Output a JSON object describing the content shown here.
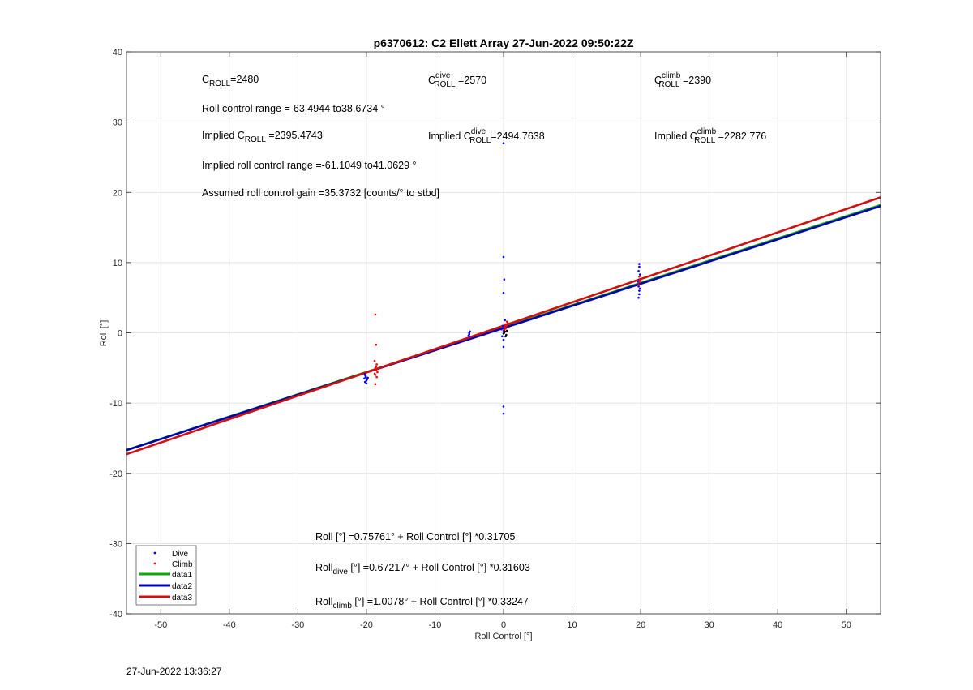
{
  "chart_data": {
    "type": "scatter",
    "title": "p6370612: C2 Ellett Array 27-Jun-2022 09:50:22Z",
    "xlabel": "Roll Control [°]",
    "ylabel": "Roll [°]",
    "xlim": [
      -55,
      55
    ],
    "ylim": [
      -40,
      40
    ],
    "xticks": [
      -50,
      -40,
      -30,
      -20,
      -10,
      0,
      10,
      20,
      30,
      40,
      50
    ],
    "yticks": [
      -40,
      -30,
      -20,
      -10,
      0,
      10,
      20,
      30,
      40
    ],
    "xtick_labels": [
      "-50",
      "-40",
      "-30",
      "-20",
      "-10",
      "0",
      "10",
      "20",
      "30",
      "40",
      "50"
    ],
    "ytick_labels": [
      "-40",
      "-30",
      "-20",
      "-10",
      "0",
      "10",
      "20",
      "30",
      "40"
    ],
    "grid": true,
    "legend_position": "bottom-left",
    "colors": {
      "dive": "#0000ff",
      "climb": "#ff0000",
      "data1": "#00b000",
      "data2": "#0000b0",
      "data3": "#d01010",
      "extra": "#000000"
    },
    "series": [
      {
        "name": "Dive",
        "kind": "points",
        "color_key": "dive",
        "x": [
          -20.2,
          -20.1,
          -20.3,
          -20.0,
          -20.2,
          -20.1,
          -19.9,
          -20.2,
          -20.0,
          -19.8,
          -5.0,
          -5.0,
          -4.9,
          -5.1,
          -5.0,
          -0.3,
          -0.1,
          0.0,
          0.1,
          0.0,
          0.0,
          0.0,
          0.0,
          0.0,
          0.0,
          0.0,
          -0.2,
          0.2,
          0.0,
          0.1,
          19.7,
          19.8,
          19.8,
          19.9,
          19.7,
          19.8,
          19.6,
          19.8,
          19.9,
          19.7,
          19.8,
          19.8
        ],
        "y": [
          -6.0,
          -6.3,
          -6.5,
          -6.8,
          -7.0,
          -6.2,
          -6.6,
          -5.9,
          -7.2,
          -6.4,
          0.0,
          -0.2,
          0.2,
          -0.4,
          -0.5,
          0.5,
          1.0,
          10.8,
          7.6,
          5.7,
          27.0,
          -10.5,
          -11.5,
          -2.0,
          -1.0,
          0.3,
          -0.5,
          1.8,
          0.8,
          0.6,
          5.0,
          5.5,
          6.0,
          6.3,
          6.6,
          7.0,
          7.3,
          7.6,
          8.3,
          8.8,
          9.4,
          9.8
        ],
        "legend_label": "Dive"
      },
      {
        "name": "Climb",
        "kind": "points",
        "color_key": "climb",
        "x": [
          -18.7,
          -18.6,
          -18.8,
          -18.5,
          -18.7,
          -18.6,
          -18.4,
          -18.7,
          -18.6,
          -18.8,
          -18.5,
          -18.7,
          0.2,
          0.3,
          0.5,
          0.1,
          0.4,
          0.6,
          0.3,
          19.8,
          19.9,
          19.8,
          19.7,
          19.9
        ],
        "y": [
          2.6,
          -1.7,
          -4.0,
          -4.5,
          -5.0,
          -5.3,
          -5.6,
          -6.0,
          -4.8,
          -5.8,
          -6.3,
          -7.3,
          0.8,
          1.2,
          1.6,
          0.4,
          1.0,
          1.4,
          0.6,
          7.2,
          7.6,
          8.0,
          6.8,
          7.4
        ],
        "legend_label": "Climb"
      },
      {
        "name": "",
        "kind": "points",
        "color_key": "extra",
        "x": [
          0.2,
          0.4,
          0.1,
          0.3,
          0.5,
          0.0
        ],
        "y": [
          0.2,
          -0.3,
          0.0,
          -0.5,
          0.3,
          -0.1
        ],
        "legend_label": ""
      },
      {
        "name": "data1",
        "kind": "line",
        "color_key": "data1",
        "intercept": 0.75761,
        "slope": 0.31705,
        "legend_label": "data1"
      },
      {
        "name": "data2",
        "kind": "line",
        "color_key": "data2",
        "intercept": 0.67217,
        "slope": 0.31603,
        "legend_label": "data2"
      },
      {
        "name": "data3",
        "kind": "line",
        "color_key": "data3",
        "intercept": 1.0078,
        "slope": 0.33247,
        "legend_label": "data3"
      }
    ],
    "annotations": {
      "c_roll": {
        "base": "C",
        "sub": "ROLL",
        "sup": "",
        "value": "=2480"
      },
      "c_roll_dive": {
        "base": "C",
        "sub": "ROLL",
        "sup": "dive",
        "value": " =2570"
      },
      "c_roll_climb": {
        "base": "C",
        "sub": "ROLL",
        "sup": "climb",
        "value": " =2390"
      },
      "roll_control_range": "Roll control range =-63.4944 to38.6734 °",
      "implied_c_roll": {
        "prefix": "Implied C",
        "sub": "ROLL",
        "sup": "",
        "value": " =2395.4743"
      },
      "implied_c_roll_dive": {
        "prefix": "Implied C",
        "sub": "ROLL",
        "sup": "dive",
        "value": "=2494.7638"
      },
      "implied_c_roll_climb": {
        "prefix": "Implied C",
        "sub": "ROLL",
        "sup": "climb",
        "value": " =2282.776"
      },
      "implied_roll_range": "Implied roll control range =-61.1049 to41.0629 °",
      "assumed_gain": "Assumed roll control gain =35.3732 [counts/° to stbd]",
      "fit_all": {
        "prefix": "Roll",
        "sub": "",
        "rest": " [°] =0.75761° + Roll Control [°] *0.31705"
      },
      "fit_dive": {
        "prefix": "Roll",
        "sub": "dive",
        "rest": " [°] =0.67217° + Roll Control [°] *0.31603"
      },
      "fit_climb": {
        "prefix": "Roll",
        "sub": "climb",
        "rest": " [°] =1.0078° + Roll Control [°] *0.33247"
      }
    }
  },
  "footer": {
    "timestamp": "27-Jun-2022 13:36:27"
  }
}
